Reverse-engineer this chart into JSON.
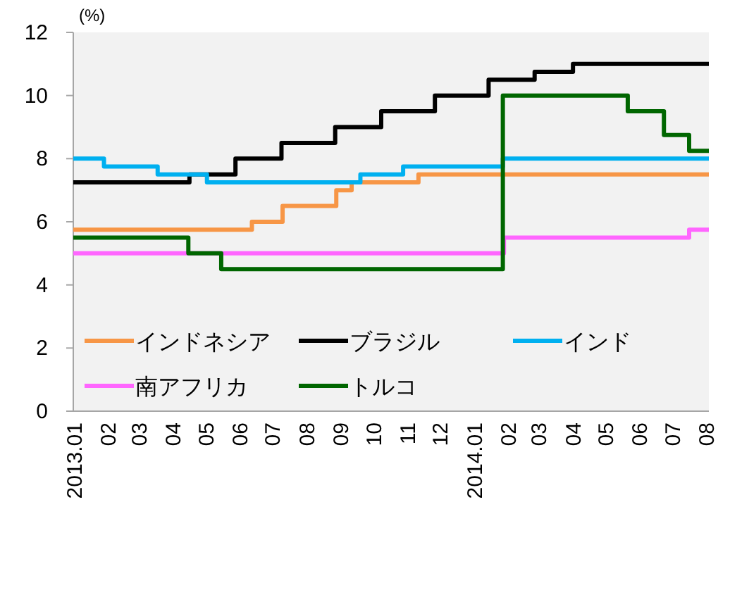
{
  "chart_data": {
    "type": "step",
    "ylabel": "(%)",
    "xlim": [
      "2013-01-01",
      "2014-08-04"
    ],
    "ylim": [
      0,
      12
    ],
    "yticks": [
      0,
      2,
      4,
      6,
      8,
      10,
      12
    ],
    "xticks": [
      {
        "value": "2013-01",
        "label": "2013.01"
      },
      {
        "value": "2013-02",
        "label": "02"
      },
      {
        "value": "2013-03",
        "label": "03"
      },
      {
        "value": "2013-04",
        "label": "04"
      },
      {
        "value": "2013-05",
        "label": "05"
      },
      {
        "value": "2013-06",
        "label": "06"
      },
      {
        "value": "2013-07",
        "label": "07"
      },
      {
        "value": "2013-08",
        "label": "08"
      },
      {
        "value": "2013-09",
        "label": "09"
      },
      {
        "value": "2013-10",
        "label": "10"
      },
      {
        "value": "2013-11",
        "label": "11"
      },
      {
        "value": "2013-12",
        "label": "12"
      },
      {
        "value": "2014-01",
        "label": "2014.01"
      },
      {
        "value": "2014-02",
        "label": "02"
      },
      {
        "value": "2014-03",
        "label": "03"
      },
      {
        "value": "2014-04",
        "label": "04"
      },
      {
        "value": "2014-05",
        "label": "05"
      },
      {
        "value": "2014-06",
        "label": "06"
      },
      {
        "value": "2014-07",
        "label": "07"
      },
      {
        "value": "2014-08",
        "label": "08"
      }
    ],
    "grid": false,
    "legend": "bottom",
    "marker": "none",
    "line_style": "solid",
    "series": [
      {
        "name": "インドネシア",
        "color": "#f79646",
        "x": [
          "2013-01-01",
          "2013-06-13",
          "2013-07-11",
          "2013-08-29",
          "2013-09-12",
          "2013-11-12",
          "2014-08-04"
        ],
        "values": [
          5.75,
          6.0,
          6.5,
          7.0,
          7.25,
          7.5,
          7.5
        ]
      },
      {
        "name": "ブラジル",
        "color": "#000000",
        "x": [
          "2013-01-01",
          "2013-04-17",
          "2013-05-29",
          "2013-07-10",
          "2013-08-28",
          "2013-10-09",
          "2013-11-27",
          "2014-01-15",
          "2014-02-26",
          "2014-04-02",
          "2014-08-04"
        ],
        "values": [
          7.25,
          7.5,
          8.0,
          8.5,
          9.0,
          9.5,
          10.0,
          10.5,
          10.75,
          11.0,
          11.0
        ]
      },
      {
        "name": "インド",
        "color": "#00b0f0",
        "x": [
          "2013-01-01",
          "2013-01-29",
          "2013-03-19",
          "2013-05-03",
          "2013-09-20",
          "2013-10-29",
          "2014-01-28",
          "2014-08-04"
        ],
        "values": [
          8.0,
          7.75,
          7.5,
          7.25,
          7.5,
          7.75,
          8.0,
          8.0
        ]
      },
      {
        "name": "南アフリカ",
        "color": "#ff66ff",
        "x": [
          "2013-01-01",
          "2014-01-29",
          "2014-07-17",
          "2014-08-04"
        ],
        "values": [
          5.0,
          5.5,
          5.75,
          5.75
        ]
      },
      {
        "name": "トルコ",
        "color": "#006600",
        "x": [
          "2013-01-01",
          "2013-04-16",
          "2013-05-16",
          "2014-01-28",
          "2014-05-22",
          "2014-06-24",
          "2014-07-17",
          "2014-08-04"
        ],
        "values": [
          5.5,
          5.0,
          4.5,
          10.0,
          9.5,
          8.75,
          8.25,
          8.25
        ]
      }
    ]
  }
}
